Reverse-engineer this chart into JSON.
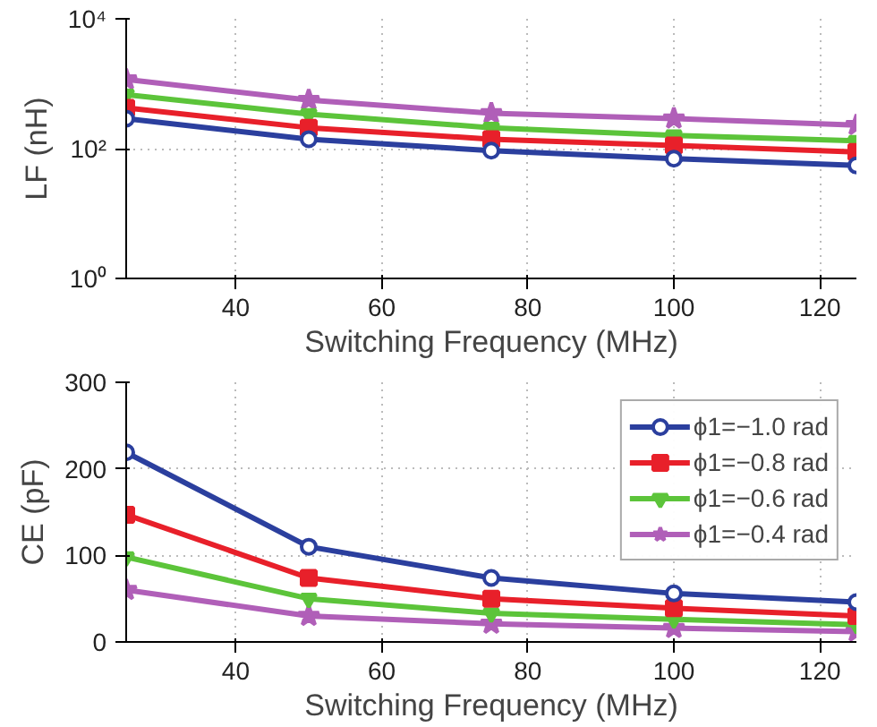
{
  "chart_data": [
    {
      "type": "line",
      "xlabel": "Switching Frequency (MHz)",
      "ylabel": "LF (nH)",
      "log": "y",
      "grid": true,
      "legend": false,
      "x": [
        25,
        50,
        75,
        100,
        125
      ],
      "xlim": [
        25,
        125
      ],
      "xticks": [
        40,
        60,
        80,
        100,
        120
      ],
      "ylim": [
        1,
        10000
      ],
      "yticks": [
        {
          "value": 1,
          "label": "10⁰"
        },
        {
          "value": 100,
          "label": "10²"
        },
        {
          "value": 10000,
          "label": "10⁴"
        }
      ],
      "series": [
        {
          "color": "#2b3f9e",
          "marker": "circle",
          "values": [
            290,
            140,
            93,
            70,
            55
          ]
        },
        {
          "color": "#e8202a",
          "marker": "square",
          "values": [
            425,
            210,
            140,
            112,
            89
          ]
        },
        {
          "color": "#5cc43a",
          "marker": "triangle",
          "values": [
            680,
            340,
            210,
            160,
            132
          ]
        },
        {
          "color": "#b05fb8",
          "marker": "star",
          "values": [
            1160,
            560,
            350,
            290,
            230
          ]
        }
      ]
    },
    {
      "type": "line",
      "xlabel": "Switching Frequency (MHz)",
      "ylabel": "CE (pF)",
      "grid": true,
      "legend": "top right",
      "x": [
        25,
        50,
        75,
        100,
        125
      ],
      "xlim": [
        25,
        125
      ],
      "xticks": [
        40,
        60,
        80,
        100,
        120
      ],
      "ylim": [
        0,
        300
      ],
      "yticks": [
        0,
        100,
        200,
        300
      ],
      "series": [
        {
          "name": "ϕ1=−1.0 rad",
          "color": "#2b3f9e",
          "marker": "circle",
          "values": [
            219,
            110,
            74,
            56,
            46
          ]
        },
        {
          "name": "ϕ1=−0.8 rad",
          "color": "#e8202a",
          "marker": "square",
          "values": [
            147,
            74,
            50,
            39,
            30
          ]
        },
        {
          "name": "ϕ1=−0.6 rad",
          "color": "#5cc43a",
          "marker": "triangle",
          "values": [
            98,
            50,
            33,
            26,
            20
          ]
        },
        {
          "name": "ϕ1=−0.4 rad",
          "color": "#b05fb8",
          "marker": "star",
          "values": [
            60,
            30,
            21,
            16,
            12
          ]
        }
      ]
    }
  ]
}
